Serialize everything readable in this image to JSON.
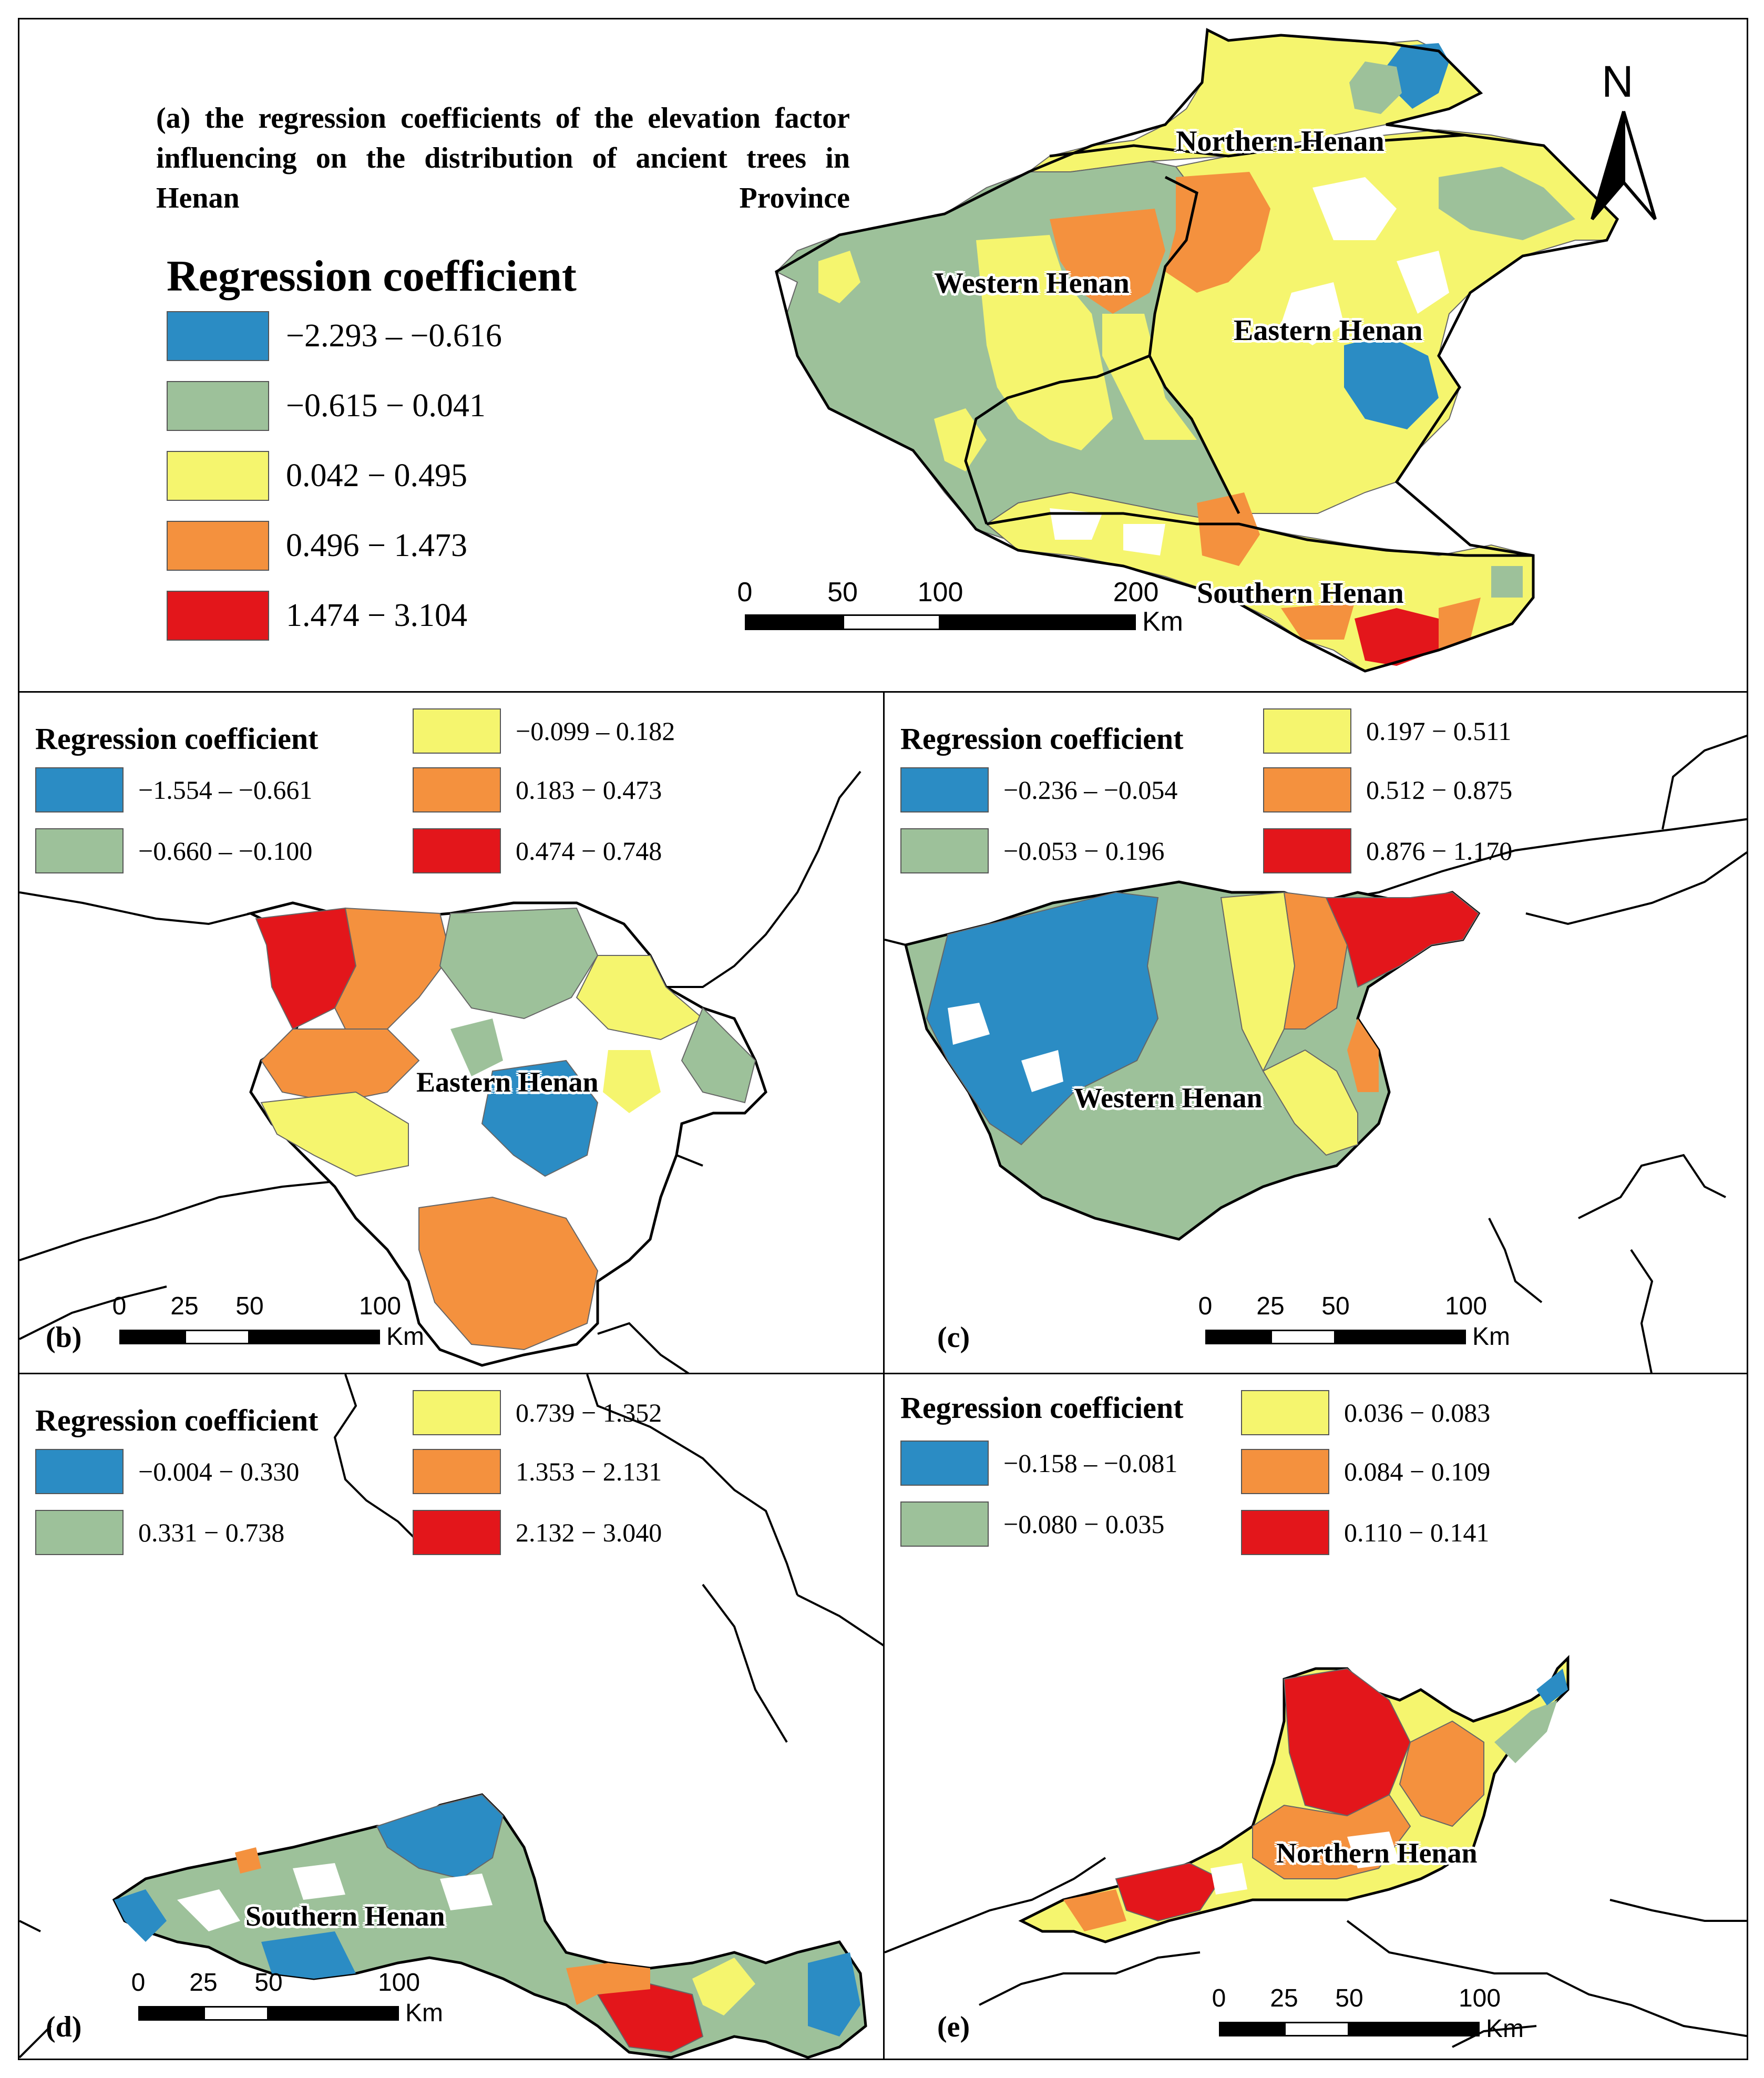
{
  "colors": {
    "blue": "#2b8cc4",
    "green": "#9dc19a",
    "yellow": "#f5f56e",
    "orange": "#f4913e",
    "red": "#e3161b",
    "boundary": "#000000",
    "county_line": "#666666"
  },
  "panel_a": {
    "title": "(a) the regression coefficients of the elevation factor influencing on the distribution of ancient trees in Henan Province",
    "legend_title": "Regression coefficient",
    "classes": [
      {
        "label": "−2.293 – −0.616",
        "color": "#2b8cc4"
      },
      {
        "label": "−0.615 − 0.041",
        "color": "#9dc19a"
      },
      {
        "label": "0.042 − 0.495",
        "color": "#f5f56e"
      },
      {
        "label": "0.496 − 1.473",
        "color": "#f4913e"
      },
      {
        "label": "1.474 − 3.104",
        "color": "#e3161b"
      }
    ],
    "region_labels": [
      "Northern Henan",
      "Western Henan",
      "Eastern Henan",
      "Southern Henan"
    ],
    "scale": {
      "ticks": [
        "0",
        "50",
        "100",
        "200"
      ],
      "unit": "Km"
    },
    "north": "N"
  },
  "panel_b": {
    "letter": "(b)",
    "legend_title": "Regression coefficient",
    "classes": [
      {
        "label": "−1.554 – −0.661",
        "color": "#2b8cc4"
      },
      {
        "label": "−0.660 – −0.100",
        "color": "#9dc19a"
      },
      {
        "label": "−0.099 – 0.182",
        "color": "#f5f56e"
      },
      {
        "label": "0.183 − 0.473",
        "color": "#f4913e"
      },
      {
        "label": "0.474 − 0.748",
        "color": "#e3161b"
      }
    ],
    "region_label": "Eastern Henan",
    "scale": {
      "ticks": [
        "0",
        "25",
        "50",
        "100"
      ],
      "unit": "Km"
    }
  },
  "panel_c": {
    "letter": "(c)",
    "legend_title": "Regression coefficient",
    "classes": [
      {
        "label": "−0.236 – −0.054",
        "color": "#2b8cc4"
      },
      {
        "label": "−0.053 − 0.196",
        "color": "#9dc19a"
      },
      {
        "label": "0.197 − 0.511",
        "color": "#f5f56e"
      },
      {
        "label": "0.512 − 0.875",
        "color": "#f4913e"
      },
      {
        "label": "0.876 − 1.170",
        "color": "#e3161b"
      }
    ],
    "region_label": "Western Henan",
    "scale": {
      "ticks": [
        "0",
        "25",
        "50",
        "100"
      ],
      "unit": "Km"
    }
  },
  "panel_d": {
    "letter": "(d)",
    "legend_title": "Regression coefficient",
    "classes": [
      {
        "label": "−0.004 − 0.330",
        "color": "#2b8cc4"
      },
      {
        "label": "0.331 − 0.738",
        "color": "#9dc19a"
      },
      {
        "label": "0.739 − 1.352",
        "color": "#f5f56e"
      },
      {
        "label": "1.353 − 2.131",
        "color": "#f4913e"
      },
      {
        "label": "2.132 − 3.040",
        "color": "#e3161b"
      }
    ],
    "region_label": "Southern Henan",
    "scale": {
      "ticks": [
        "0",
        "25",
        "50",
        "100"
      ],
      "unit": "Km"
    }
  },
  "panel_e": {
    "letter": "(e)",
    "legend_title": "Regression coefficient",
    "classes": [
      {
        "label": "−0.158 – −0.081",
        "color": "#2b8cc4"
      },
      {
        "label": "−0.080 − 0.035",
        "color": "#9dc19a"
      },
      {
        "label": "0.036 − 0.083",
        "color": "#f5f56e"
      },
      {
        "label": "0.084 − 0.109",
        "color": "#f4913e"
      },
      {
        "label": "0.110 − 0.141",
        "color": "#e3161b"
      }
    ],
    "region_label": "Northern Henan",
    "scale": {
      "ticks": [
        "0",
        "25",
        "50",
        "100"
      ],
      "unit": "Km"
    }
  }
}
